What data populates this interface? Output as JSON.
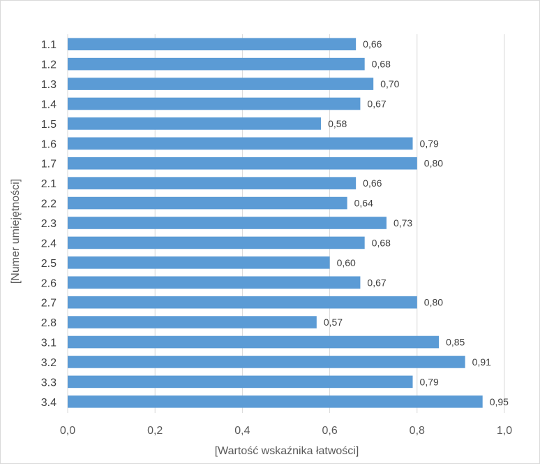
{
  "chart_data": {
    "type": "bar",
    "orientation": "horizontal",
    "categories": [
      "1.1",
      "1.2",
      "1.3",
      "1.4",
      "1.5",
      "1.6",
      "1.7",
      "2.1",
      "2.2",
      "2.3",
      "2.4",
      "2.5",
      "2.6",
      "2.7",
      "2.8",
      "3.1",
      "3.2",
      "3.3",
      "3.4"
    ],
    "values": [
      0.66,
      0.68,
      0.7,
      0.67,
      0.58,
      0.79,
      0.8,
      0.66,
      0.64,
      0.73,
      0.68,
      0.6,
      0.67,
      0.8,
      0.57,
      0.85,
      0.91,
      0.79,
      0.95
    ],
    "data_labels": [
      "0,66",
      "0,68",
      "0,70",
      "0,67",
      "0,58",
      "0,79",
      "0,80",
      "0,66",
      "0,64",
      "0,73",
      "0,68",
      "0,60",
      "0,67",
      "0,80",
      "0,57",
      "0,85",
      "0,91",
      "0,79",
      "0,95"
    ],
    "xlabel": "[Wartość wskaźnika łatwości]",
    "ylabel": "[Numer umiejętności]",
    "xlim": [
      0,
      1.0
    ],
    "x_ticks": [
      0,
      0.2,
      0.4,
      0.6,
      0.8,
      1.0
    ],
    "x_tick_labels": [
      "0,0",
      "0,2",
      "0,4",
      "0,6",
      "0,8",
      "1,0"
    ],
    "grid": "vertical",
    "legend": "none",
    "colors": {
      "bar": "#5b9bd5",
      "grid": "#d9d9d9",
      "text": "#404040"
    }
  }
}
